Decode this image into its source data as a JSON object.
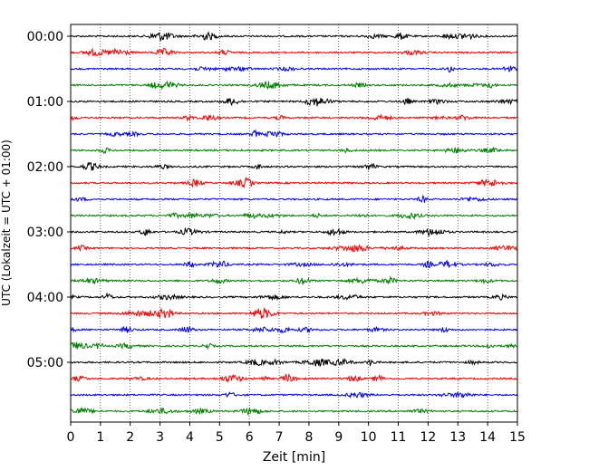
{
  "chart_data": {
    "type": "line",
    "subtype": "helicorder",
    "xlabel": "Zeit  [min]",
    "ylabel": "UTC (Lokalzeit = UTC + 01:00)",
    "xlim": [
      0,
      15
    ],
    "x_ticks": [
      "0",
      "1",
      "2",
      "3",
      "4",
      "5",
      "6",
      "7",
      "8",
      "9",
      "10",
      "11",
      "12",
      "13",
      "14",
      "15"
    ],
    "y_ticks": [
      "00:00",
      "01:00",
      "02:00",
      "03:00",
      "04:00",
      "05:00"
    ],
    "trace_count": 24,
    "trace_interval_minutes": 15,
    "trace_colors": [
      "#000000",
      "#ff0000",
      "#0000ff",
      "#007f00"
    ],
    "grid": "vertical-dotted"
  }
}
